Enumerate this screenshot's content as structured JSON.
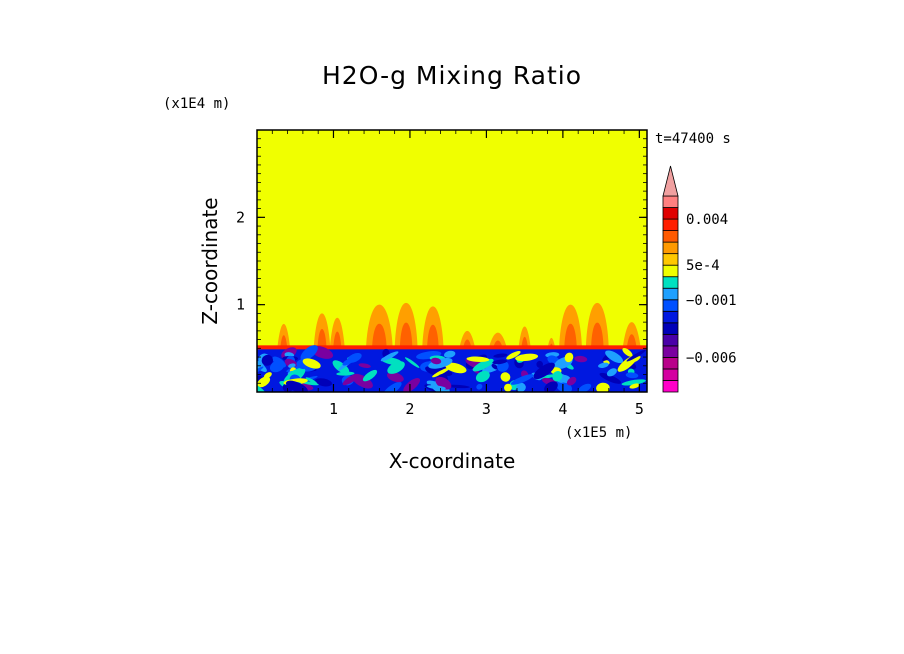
{
  "chart_data": {
    "type": "heatmap",
    "title": "H2O-g Mixing Ratio",
    "xlabel": "X-coordinate",
    "ylabel": "Z-coordinate",
    "x_unit": "(x1E5 m)",
    "y_unit": "(x1E4 m)",
    "time_label": "t=47400 s",
    "xlim": [
      0,
      5.1
    ],
    "ylim": [
      0,
      3.0
    ],
    "x_ticks": [
      1,
      2,
      3,
      4,
      5
    ],
    "x_tick_labels": [
      "1",
      "2",
      "3",
      "4",
      "5"
    ],
    "y_ticks": [
      1,
      2
    ],
    "y_tick_labels": [
      "1",
      "2"
    ],
    "background_value_color": "#f0ff00",
    "boundary_layer_top": 0.5,
    "colorbar": {
      "levels": [
        -0.009,
        -0.008,
        -0.007,
        -0.006,
        -0.005,
        -0.004,
        -0.003,
        -0.002,
        -0.001,
        -0.0005,
        0,
        0.0005,
        0.001,
        0.002,
        0.003,
        0.004,
        0.005,
        0.006
      ],
      "colors": [
        "#ff00c8",
        "#d400a0",
        "#b8008a",
        "#7a00a0",
        "#4a00a8",
        "#0000b8",
        "#0018e0",
        "#0050ff",
        "#1ea0ff",
        "#00e0c0",
        "#f0ff00",
        "#ffc800",
        "#ff9a00",
        "#ff5a00",
        "#ff1e00",
        "#e00000",
        "#ff8080"
      ],
      "labels": [
        {
          "value": 0.004,
          "text": "0.004"
        },
        {
          "value": 0.0005,
          "text": "5e-4"
        },
        {
          "value": -0.001,
          "text": "−0.001"
        },
        {
          "value": -0.006,
          "text": "−0.006"
        }
      ],
      "extend": "max",
      "extend_color": "#f0a0a0"
    },
    "plumes": [
      {
        "x": 0.35,
        "top": 0.78,
        "width": 0.18
      },
      {
        "x": 0.85,
        "top": 0.9,
        "width": 0.22
      },
      {
        "x": 1.05,
        "top": 0.85,
        "width": 0.2
      },
      {
        "x": 1.6,
        "top": 1.0,
        "width": 0.35
      },
      {
        "x": 1.95,
        "top": 1.02,
        "width": 0.3
      },
      {
        "x": 2.3,
        "top": 0.98,
        "width": 0.28
      },
      {
        "x": 2.75,
        "top": 0.7,
        "width": 0.25
      },
      {
        "x": 3.15,
        "top": 0.68,
        "width": 0.3
      },
      {
        "x": 3.5,
        "top": 0.75,
        "width": 0.18
      },
      {
        "x": 3.85,
        "top": 0.62,
        "width": 0.15
      },
      {
        "x": 4.1,
        "top": 1.0,
        "width": 0.3
      },
      {
        "x": 4.45,
        "top": 1.02,
        "width": 0.3
      },
      {
        "x": 4.9,
        "top": 0.8,
        "width": 0.25
      }
    ]
  }
}
